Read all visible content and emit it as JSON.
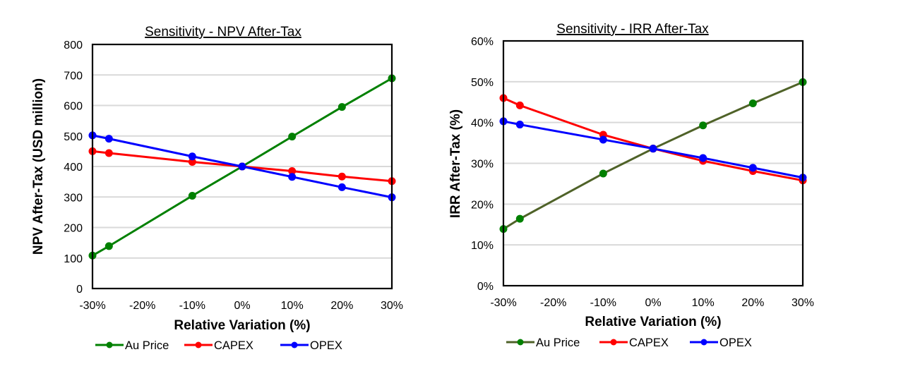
{
  "chart_data": [
    {
      "id": "npv",
      "type": "line",
      "title": "Sensitivity - NPV After-Tax",
      "xlabel": "Relative Variation (%)",
      "ylabel": "NPV After-Tax (USD million)",
      "xlim": [
        -30,
        30
      ],
      "ylim": [
        0,
        800
      ],
      "x_ticks": [
        -30,
        -20,
        -10,
        0,
        10,
        20,
        30
      ],
      "x_tick_labels": [
        "-30%",
        "-20%",
        "-10%",
        "0%",
        "10%",
        "20%",
        "30%"
      ],
      "y_ticks": [
        0,
        100,
        200,
        300,
        400,
        500,
        600,
        700,
        800
      ],
      "y_tick_labels": [
        "0",
        "100",
        "200",
        "300",
        "400",
        "500",
        "600",
        "700",
        "800"
      ],
      "grid": "horizontal",
      "legend": "bottom",
      "x": [
        -30,
        -26.7,
        -10,
        0,
        10,
        20,
        30
      ],
      "series": [
        {
          "name": "Au Price",
          "line_color": "#008000",
          "marker_color": "#008000",
          "values": [
            108,
            139,
            304,
            400,
            498,
            595,
            689
          ]
        },
        {
          "name": "CAPEX",
          "line_color": "#ff0000",
          "marker_color": "#ff0000",
          "values": [
            450,
            444,
            415,
            400,
            385,
            367,
            352
          ]
        },
        {
          "name": "OPEX",
          "line_color": "#0000ff",
          "marker_color": "#0000ff",
          "values": [
            502,
            491,
            433,
            400,
            366,
            332,
            299
          ]
        }
      ]
    },
    {
      "id": "irr",
      "type": "line",
      "title": "Sensitivity - IRR After-Tax",
      "xlabel": "Relative Variation (%)",
      "ylabel": "IRR After-Tax (%)",
      "xlim": [
        -30,
        30
      ],
      "ylim": [
        0,
        60
      ],
      "x_ticks": [
        -30,
        -20,
        -10,
        0,
        10,
        20,
        30
      ],
      "x_tick_labels": [
        "-30%",
        "-20%",
        "-10%",
        "0%",
        "10%",
        "20%",
        "30%"
      ],
      "y_ticks": [
        0,
        10,
        20,
        30,
        40,
        50,
        60
      ],
      "y_tick_labels": [
        "0%",
        "10%",
        "20%",
        "30%",
        "40%",
        "50%",
        "60%"
      ],
      "grid": "horizontal",
      "legend": "bottom",
      "x": [
        -30,
        -26.7,
        -10,
        0,
        10,
        20,
        30
      ],
      "series": [
        {
          "name": "Au Price",
          "line_color": "#4f6228",
          "marker_color": "#008000",
          "values": [
            13.9,
            16.4,
            27.5,
            33.6,
            39.3,
            44.7,
            49.9
          ]
        },
        {
          "name": "CAPEX",
          "line_color": "#ff0000",
          "marker_color": "#ff0000",
          "values": [
            46.0,
            44.2,
            37.0,
            33.6,
            30.6,
            28.1,
            25.8
          ]
        },
        {
          "name": "OPEX",
          "line_color": "#0000ff",
          "marker_color": "#0000ff",
          "values": [
            40.3,
            39.5,
            35.8,
            33.6,
            31.3,
            28.9,
            26.5
          ]
        }
      ]
    }
  ]
}
